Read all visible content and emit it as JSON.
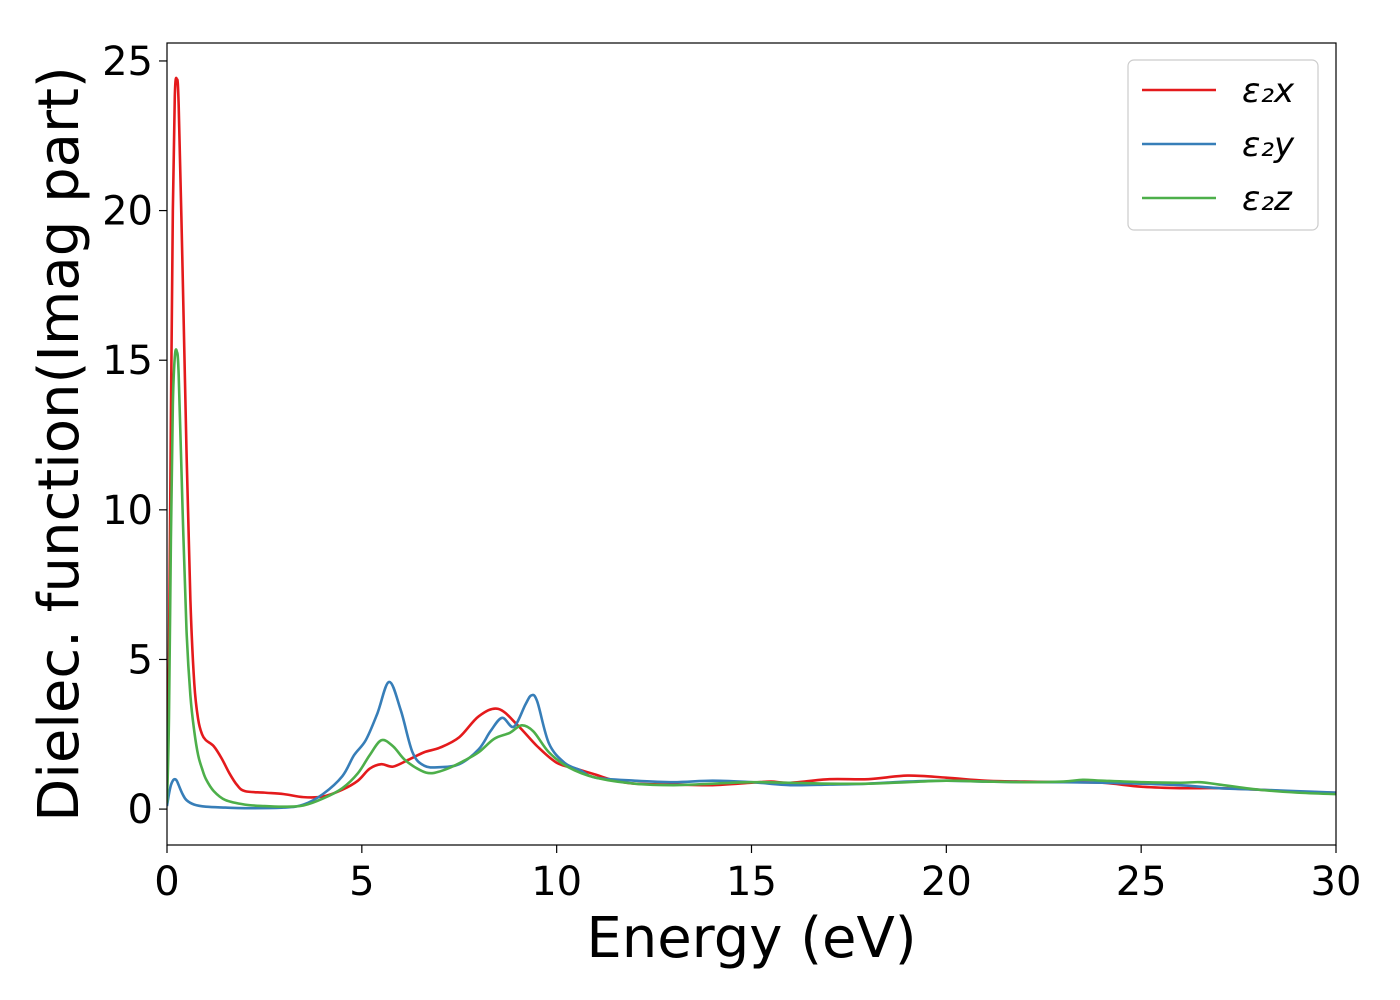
{
  "chart_data": {
    "type": "line",
    "xlabel": "Energy (eV)",
    "ylabel": "Dielec. function(Imag part)",
    "xlim": [
      0,
      30
    ],
    "ylim": [
      -1.2,
      25.6
    ],
    "xticks": [
      0,
      5,
      10,
      15,
      20,
      25,
      30
    ],
    "yticks": [
      0,
      5,
      10,
      15,
      20,
      25
    ],
    "grid": false,
    "legend_position": "top-right",
    "series": [
      {
        "name": "ε₂x",
        "color": "#e41a1c",
        "x": [
          0,
          0.05,
          0.1,
          0.15,
          0.2,
          0.25,
          0.3,
          0.4,
          0.5,
          0.6,
          0.7,
          0.8,
          0.9,
          1.0,
          1.2,
          1.4,
          1.6,
          1.8,
          2.0,
          2.5,
          3.0,
          3.5,
          4.0,
          4.5,
          4.9,
          5.2,
          5.5,
          5.8,
          6.2,
          6.6,
          7.0,
          7.5,
          8.0,
          8.5,
          9.0,
          9.5,
          10.0,
          10.5,
          11.0,
          11.5,
          12,
          13,
          14,
          15,
          15.5,
          16,
          17,
          18,
          19,
          20,
          21,
          22,
          23,
          24,
          25,
          26,
          27,
          28,
          29,
          30
        ],
        "values": [
          0.3,
          5,
          13,
          20,
          23.8,
          24.4,
          23.5,
          18,
          12,
          7,
          4.2,
          3,
          2.5,
          2.3,
          2.1,
          1.7,
          1.2,
          0.8,
          0.6,
          0.55,
          0.5,
          0.4,
          0.42,
          0.65,
          0.95,
          1.35,
          1.5,
          1.42,
          1.65,
          1.9,
          2.05,
          2.4,
          3.1,
          3.35,
          2.8,
          2.1,
          1.55,
          1.35,
          1.15,
          0.95,
          0.85,
          0.82,
          0.8,
          0.88,
          0.92,
          0.88,
          1.0,
          1.0,
          1.12,
          1.05,
          0.95,
          0.92,
          0.9,
          0.88,
          0.75,
          0.7,
          0.7,
          0.65,
          0.58,
          0.55
        ]
      },
      {
        "name": "ε₂y",
        "color": "#377eb8",
        "x": [
          0,
          0.05,
          0.1,
          0.15,
          0.2,
          0.25,
          0.3,
          0.4,
          0.5,
          0.7,
          1.0,
          1.5,
          2.0,
          3.0,
          3.5,
          4.0,
          4.5,
          4.8,
          5.1,
          5.4,
          5.7,
          6.0,
          6.3,
          6.6,
          7.0,
          7.5,
          8.0,
          8.3,
          8.6,
          8.9,
          9.2,
          9.35,
          9.5,
          9.8,
          10.2,
          10.6,
          11,
          12,
          13,
          14,
          15,
          16,
          17,
          18,
          19,
          20,
          21,
          22,
          23,
          24,
          25,
          26,
          27,
          28,
          29,
          30
        ],
        "values": [
          0.1,
          0.5,
          0.8,
          0.95,
          1.0,
          0.95,
          0.8,
          0.5,
          0.3,
          0.15,
          0.08,
          0.05,
          0.03,
          0.05,
          0.15,
          0.5,
          1.1,
          1.8,
          2.3,
          3.2,
          4.25,
          3.3,
          1.9,
          1.45,
          1.4,
          1.5,
          2.0,
          2.6,
          3.05,
          2.75,
          3.5,
          3.8,
          3.6,
          2.2,
          1.55,
          1.3,
          1.05,
          0.95,
          0.9,
          0.95,
          0.9,
          0.8,
          0.82,
          0.85,
          0.92,
          0.95,
          0.92,
          0.9,
          0.9,
          0.88,
          0.85,
          0.8,
          0.7,
          0.65,
          0.6,
          0.55
        ]
      },
      {
        "name": "ε₂z",
        "color": "#4daf4a",
        "x": [
          0,
          0.05,
          0.1,
          0.15,
          0.2,
          0.25,
          0.3,
          0.4,
          0.5,
          0.6,
          0.7,
          0.8,
          0.9,
          1.0,
          1.2,
          1.5,
          2.0,
          2.5,
          3.0,
          3.5,
          4.0,
          4.5,
          4.9,
          5.2,
          5.5,
          5.8,
          6.1,
          6.5,
          6.8,
          7.2,
          7.6,
          8.0,
          8.4,
          8.8,
          9.1,
          9.4,
          9.8,
          10.3,
          11,
          12,
          13,
          14,
          15,
          16,
          17,
          18,
          19,
          20,
          21,
          22,
          23,
          23.5,
          24,
          25,
          26,
          26.5,
          27,
          28,
          29,
          30
        ],
        "values": [
          0.2,
          3,
          9,
          13.5,
          15.1,
          15.3,
          14.5,
          10,
          6,
          3.8,
          2.6,
          1.8,
          1.35,
          1.0,
          0.6,
          0.3,
          0.15,
          0.1,
          0.08,
          0.12,
          0.35,
          0.7,
          1.2,
          1.8,
          2.3,
          2.1,
          1.65,
          1.3,
          1.2,
          1.35,
          1.6,
          1.9,
          2.35,
          2.55,
          2.8,
          2.6,
          1.9,
          1.4,
          1.05,
          0.85,
          0.8,
          0.85,
          0.9,
          0.88,
          0.85,
          0.85,
          0.9,
          0.95,
          0.92,
          0.9,
          0.92,
          0.98,
          0.95,
          0.9,
          0.88,
          0.9,
          0.82,
          0.65,
          0.55,
          0.5
        ]
      }
    ]
  }
}
